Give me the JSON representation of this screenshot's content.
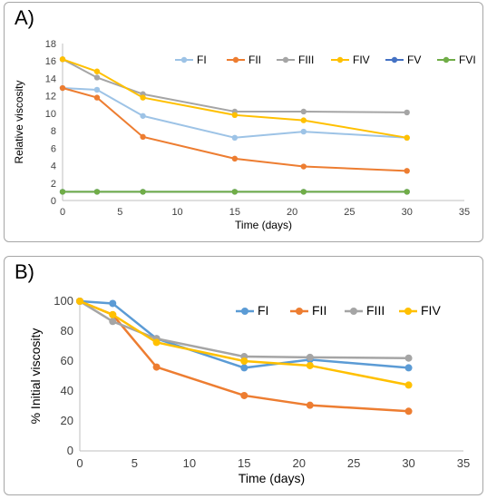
{
  "chart_data": [
    {
      "type": "line",
      "panel_label": "A)",
      "xlabel": "Time (days)",
      "ylabel": "Relative viscosity",
      "xlim": [
        0,
        35
      ],
      "ylim": [
        0,
        18
      ],
      "x_ticks": [
        0,
        5,
        10,
        15,
        20,
        25,
        30,
        35
      ],
      "y_ticks": [
        0,
        2,
        4,
        6,
        8,
        10,
        12,
        14,
        16,
        18
      ],
      "grid": false,
      "legend": "top-right",
      "x": [
        0,
        3,
        7,
        15,
        21,
        30
      ],
      "series": [
        {
          "name": "FI",
          "color": "#9dc3e6",
          "values": [
            12.9,
            12.7,
            9.7,
            7.2,
            7.9,
            7.2
          ]
        },
        {
          "name": "FII",
          "color": "#ed7d31",
          "values": [
            12.9,
            11.8,
            7.3,
            4.8,
            3.9,
            3.4
          ]
        },
        {
          "name": "FIII",
          "color": "#a5a5a5",
          "values": [
            16.2,
            14.1,
            12.2,
            10.2,
            10.2,
            10.1
          ]
        },
        {
          "name": "FIV",
          "color": "#ffc000",
          "values": [
            16.2,
            14.8,
            11.8,
            9.8,
            9.2,
            7.2
          ]
        },
        {
          "name": "FV",
          "color": "#4472c4",
          "values": [
            1.0,
            1.0,
            1.0,
            1.0,
            1.0,
            1.0
          ]
        },
        {
          "name": "FVI",
          "color": "#70ad47",
          "values": [
            1.0,
            1.0,
            1.0,
            1.0,
            1.0,
            1.0
          ]
        }
      ]
    },
    {
      "type": "line",
      "panel_label": "B)",
      "xlabel": "Time (days)",
      "ylabel": "% Initial viscosity",
      "xlim": [
        0,
        35
      ],
      "ylim": [
        0,
        100
      ],
      "x_ticks": [
        0,
        5,
        10,
        15,
        20,
        25,
        30,
        35
      ],
      "y_ticks": [
        0,
        20,
        40,
        60,
        80,
        100
      ],
      "grid": false,
      "legend": "top-right",
      "x": [
        0,
        3,
        7,
        15,
        21,
        30
      ],
      "series": [
        {
          "name": "FI",
          "color": "#5b9bd5",
          "values": [
            100,
            98.5,
            75,
            55.5,
            61,
            55.5
          ]
        },
        {
          "name": "FII",
          "color": "#ed7d31",
          "values": [
            100,
            91,
            56,
            37,
            30.5,
            26.5
          ]
        },
        {
          "name": "FIII",
          "color": "#a5a5a5",
          "values": [
            100,
            86.5,
            75,
            63,
            62.5,
            62
          ]
        },
        {
          "name": "FIV",
          "color": "#ffc000",
          "values": [
            100,
            91,
            72.5,
            60,
            57,
            44
          ]
        }
      ]
    }
  ]
}
